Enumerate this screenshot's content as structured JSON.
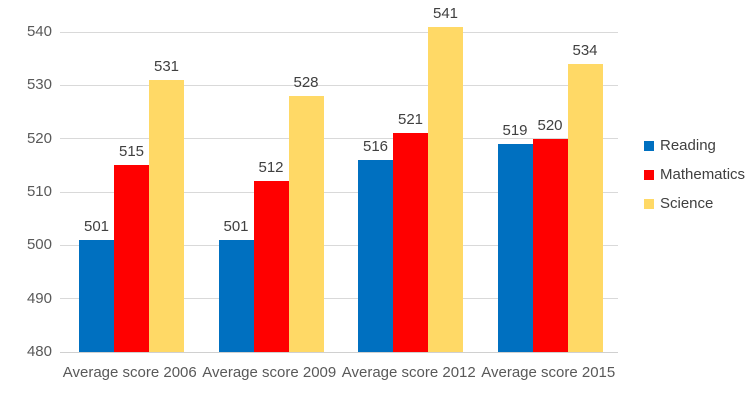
{
  "chart_data": {
    "type": "bar",
    "title": "",
    "xlabel": "",
    "ylabel": "",
    "categories": [
      "Average score 2006",
      "Average score 2009",
      "Average score 2012",
      "Average score 2015"
    ],
    "series": [
      {
        "name": "Reading",
        "color": "#0070C0",
        "values": [
          501,
          501,
          516,
          519
        ]
      },
      {
        "name": "Mathematics",
        "color": "#FF0000",
        "values": [
          515,
          512,
          521,
          520
        ]
      },
      {
        "name": "Science",
        "color": "#FFD966",
        "values": [
          531,
          528,
          541,
          534
        ]
      }
    ],
    "ylim": [
      480,
      540
    ],
    "yticks": [
      "480",
      "490",
      "500",
      "510",
      "520",
      "530",
      "540"
    ],
    "grid": true,
    "data_labels": true,
    "legend_position": "right"
  },
  "colors": {
    "gridline": "#D9D9D9",
    "axis_text": "#595959",
    "data_label_text": "#404040",
    "background": "#FFFFFF"
  }
}
